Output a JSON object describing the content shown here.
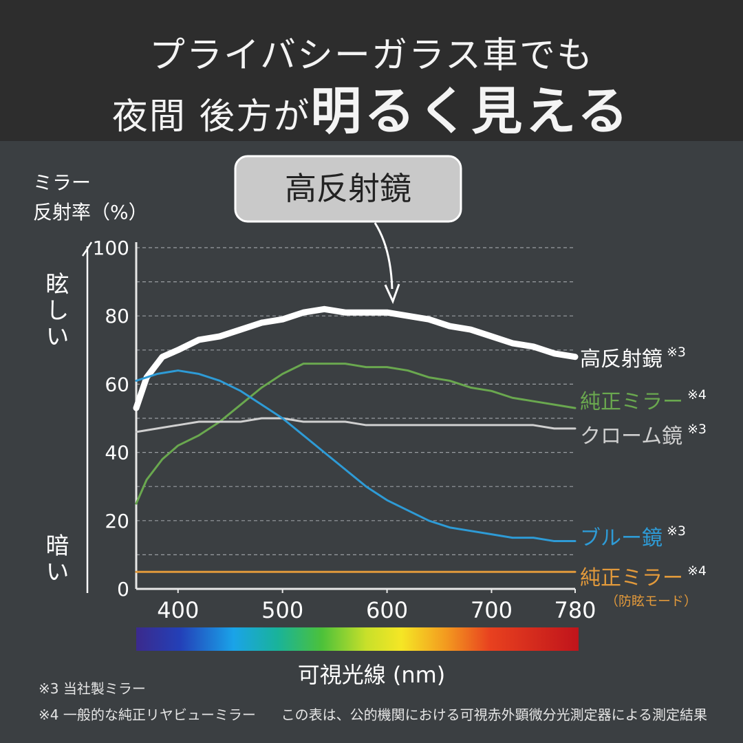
{
  "header": {
    "line1": "プライバシーガラス車でも",
    "line2_prefix": "夜間 後方が",
    "line2_emphasis": "明るく見える"
  },
  "callout": {
    "label": "高反射鏡"
  },
  "side_axis": {
    "top": "眩しい",
    "bottom": "暗い"
  },
  "footnotes": {
    "note3": "※3 当社製ミラー",
    "note4": "※4 一般的な純正リヤビューミラー",
    "source": "この表は、公的機関における可視赤外顕微分光測定器による測定結果"
  },
  "chart_data": {
    "type": "line",
    "title": "",
    "xlabel": "可視光線 (nm)",
    "ylabel_line1": "ミラー",
    "ylabel_line2": "反射率（%）",
    "xlim": [
      360,
      780
    ],
    "ylim": [
      0,
      100
    ],
    "x_ticks": [
      400,
      500,
      600,
      700,
      780
    ],
    "y_ticks": [
      0,
      20,
      40,
      60,
      80,
      100
    ],
    "grid": "dashed horizontal every 10",
    "spectrum_bar": true,
    "series": [
      {
        "name": "高反射鏡",
        "note": "※3",
        "color": "#ffffff",
        "width": 9,
        "x": [
          360,
          370,
          385,
          400,
          420,
          440,
          460,
          480,
          500,
          520,
          540,
          560,
          580,
          600,
          620,
          640,
          660,
          680,
          700,
          720,
          740,
          760,
          780
        ],
        "y": [
          53,
          62,
          68,
          70,
          73,
          74,
          76,
          78,
          79,
          81,
          82,
          81,
          81,
          81,
          80,
          79,
          77,
          76,
          74,
          72,
          71,
          69,
          68
        ]
      },
      {
        "name": "純正ミラー",
        "note": "※4",
        "color": "#6aa84f",
        "width": 3,
        "x": [
          360,
          370,
          385,
          400,
          420,
          440,
          460,
          480,
          500,
          520,
          540,
          560,
          580,
          600,
          620,
          640,
          660,
          680,
          700,
          720,
          740,
          760,
          780
        ],
        "y": [
          25,
          32,
          38,
          42,
          45,
          49,
          54,
          59,
          63,
          66,
          66,
          66,
          65,
          65,
          64,
          62,
          61,
          59,
          58,
          56,
          55,
          54,
          53
        ]
      },
      {
        "name": "クローム鏡",
        "note": "※3",
        "color": "#d0d0d0",
        "width": 3,
        "x": [
          360,
          380,
          400,
          420,
          440,
          460,
          480,
          500,
          520,
          540,
          560,
          580,
          600,
          620,
          640,
          660,
          680,
          700,
          720,
          740,
          760,
          780
        ],
        "y": [
          46,
          47,
          48,
          49,
          49,
          49,
          50,
          50,
          49,
          49,
          49,
          48,
          48,
          48,
          48,
          48,
          48,
          48,
          48,
          48,
          47,
          47
        ]
      },
      {
        "name": "ブルー鏡",
        "note": "※3",
        "color": "#2e9bd6",
        "width": 3,
        "x": [
          360,
          380,
          400,
          420,
          440,
          460,
          480,
          500,
          520,
          540,
          560,
          580,
          600,
          620,
          640,
          660,
          680,
          700,
          720,
          740,
          760,
          780
        ],
        "y": [
          61,
          63,
          64,
          63,
          61,
          58,
          54,
          50,
          45,
          40,
          35,
          30,
          26,
          23,
          20,
          18,
          17,
          16,
          15,
          15,
          14,
          14
        ]
      },
      {
        "name": "純正ミラー",
        "note": "※4",
        "sub": "（防眩モード）",
        "color": "#e39a3b",
        "width": 3,
        "x": [
          360,
          780
        ],
        "y": [
          5,
          5
        ]
      }
    ]
  }
}
